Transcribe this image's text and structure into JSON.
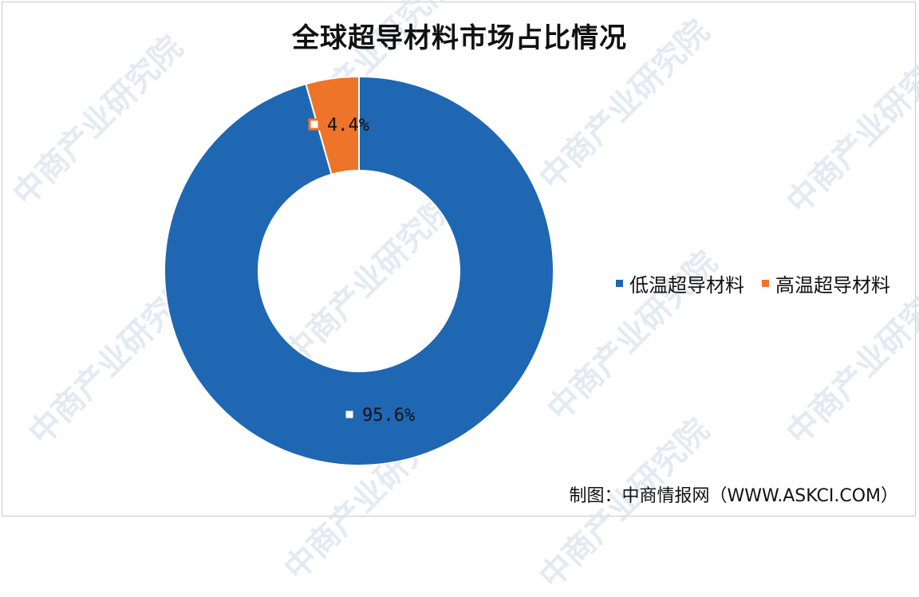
{
  "chart_data": {
    "type": "pie",
    "donut": true,
    "title": "全球超导材料市场占比情况",
    "categories": [
      "低温超导材料",
      "高温超导材料"
    ],
    "values": [
      95.6,
      4.4
    ],
    "data_labels": [
      "95.6%",
      "4.4%"
    ],
    "colors": [
      "#1f67b2",
      "#ed7428"
    ],
    "legend_position": "right"
  },
  "source": "制图：中商情报网（WWW.ASKCI.COM）",
  "watermark_text": "中商产业研究院"
}
